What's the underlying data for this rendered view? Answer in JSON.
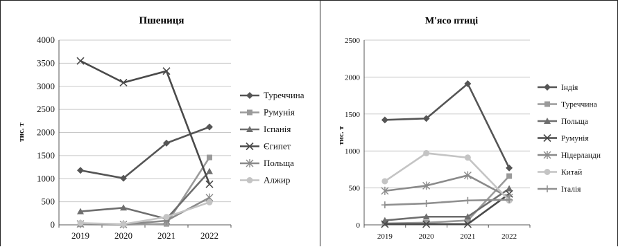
{
  "chart_data": [
    {
      "type": "line",
      "title": "Пшениця",
      "xlabel": "",
      "ylabel": "тис. т",
      "categories": [
        "2019",
        "2020",
        "2021",
        "2022"
      ],
      "ylim": [
        0,
        4000
      ],
      "yticks": [
        "0",
        "500",
        "1000",
        "1500",
        "2000",
        "2500",
        "3000",
        "3500",
        "4000"
      ],
      "grid": true,
      "legend_position": "right",
      "series": [
        {
          "name": "Туреччина",
          "values": [
            1180,
            1010,
            1770,
            2120
          ],
          "color": "#555555",
          "marker": "diamond"
        },
        {
          "name": "Румунія",
          "values": [
            10,
            5,
            20,
            1460
          ],
          "color": "#9a9a9a",
          "marker": "square"
        },
        {
          "name": "Іспанія",
          "values": [
            290,
            370,
            130,
            1160
          ],
          "color": "#6e6e6e",
          "marker": "triangle"
        },
        {
          "name": "Єгипет",
          "values": [
            3550,
            3080,
            3330,
            880
          ],
          "color": "#4a4a4a",
          "marker": "x"
        },
        {
          "name": "Польща",
          "values": [
            20,
            10,
            90,
            590
          ],
          "color": "#8a8a8a",
          "marker": "star"
        },
        {
          "name": "Алжир",
          "values": [
            40,
            15,
            170,
            490
          ],
          "color": "#c4c4c4",
          "marker": "circle"
        }
      ]
    },
    {
      "type": "line",
      "title": "М'ясо птиці",
      "xlabel": "",
      "ylabel": "тис. т",
      "categories": [
        "2019",
        "2020",
        "2021",
        "2022"
      ],
      "ylim": [
        0,
        2500
      ],
      "yticks": [
        "0",
        "500",
        "1000",
        "1500",
        "2000",
        "2500"
      ],
      "grid": true,
      "legend_position": "right",
      "series": [
        {
          "name": "Індія",
          "values": [
            1420,
            1440,
            1910,
            770
          ],
          "color": "#555555",
          "marker": "diamond"
        },
        {
          "name": "Туреччина",
          "values": [
            20,
            30,
            60,
            660
          ],
          "color": "#9a9a9a",
          "marker": "square"
        },
        {
          "name": "Польща",
          "values": [
            60,
            110,
            110,
            490
          ],
          "color": "#6e6e6e",
          "marker": "triangle"
        },
        {
          "name": "Румунія",
          "values": [
            10,
            10,
            10,
            420
          ],
          "color": "#4a4a4a",
          "marker": "x"
        },
        {
          "name": "Нідерланди",
          "values": [
            460,
            530,
            670,
            370
          ],
          "color": "#8a8a8a",
          "marker": "star"
        },
        {
          "name": "Китай",
          "values": [
            590,
            970,
            910,
            330
          ],
          "color": "#c4c4c4",
          "marker": "circle"
        },
        {
          "name": "Італія",
          "values": [
            270,
            290,
            330,
            340
          ],
          "color": "#8f8f8f",
          "marker": "plus"
        }
      ]
    }
  ]
}
